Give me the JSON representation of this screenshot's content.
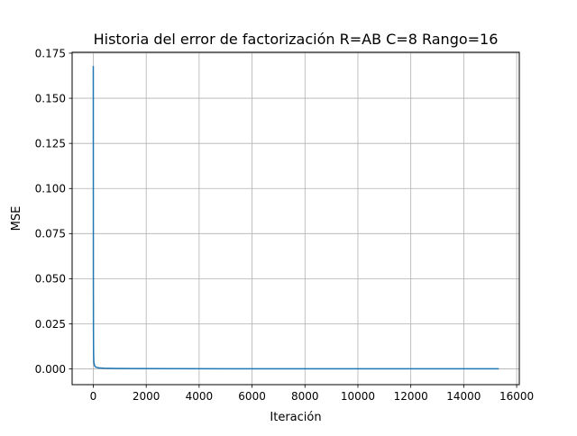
{
  "chart_data": {
    "type": "line",
    "title": "Historia del error de factorización R=AB C=8 Rango=16",
    "xlabel": "Iteración",
    "ylabel": "MSE",
    "xlim": [
      -800,
      16100
    ],
    "ylim": [
      -0.0087,
      0.1755
    ],
    "grid": true,
    "x_ticks": [
      0,
      2000,
      4000,
      6000,
      8000,
      10000,
      12000,
      14000,
      16000
    ],
    "x_tick_labels": [
      "0",
      "2000",
      "4000",
      "6000",
      "8000",
      "10000",
      "12000",
      "14000",
      "16000"
    ],
    "y_ticks": [
      0.0,
      0.025,
      0.05,
      0.075,
      0.1,
      0.125,
      0.15,
      0.175
    ],
    "y_tick_labels": [
      "0.000",
      "0.025",
      "0.050",
      "0.075",
      "0.100",
      "0.125",
      "0.150",
      "0.175"
    ],
    "series": [
      {
        "name": "MSE",
        "color": "#1f77b4",
        "x": [
          0,
          1,
          2,
          3,
          5,
          8,
          12,
          20,
          35,
          60,
          100,
          200,
          400,
          800,
          1500,
          3000,
          6000,
          10000,
          15300
        ],
        "y": [
          0.1675,
          0.12,
          0.08,
          0.05,
          0.03,
          0.015,
          0.008,
          0.004,
          0.0025,
          0.0015,
          0.001,
          0.0006,
          0.0004,
          0.0003,
          0.0002,
          0.00015,
          0.0001,
          0.0001,
          0.0001
        ]
      }
    ]
  }
}
